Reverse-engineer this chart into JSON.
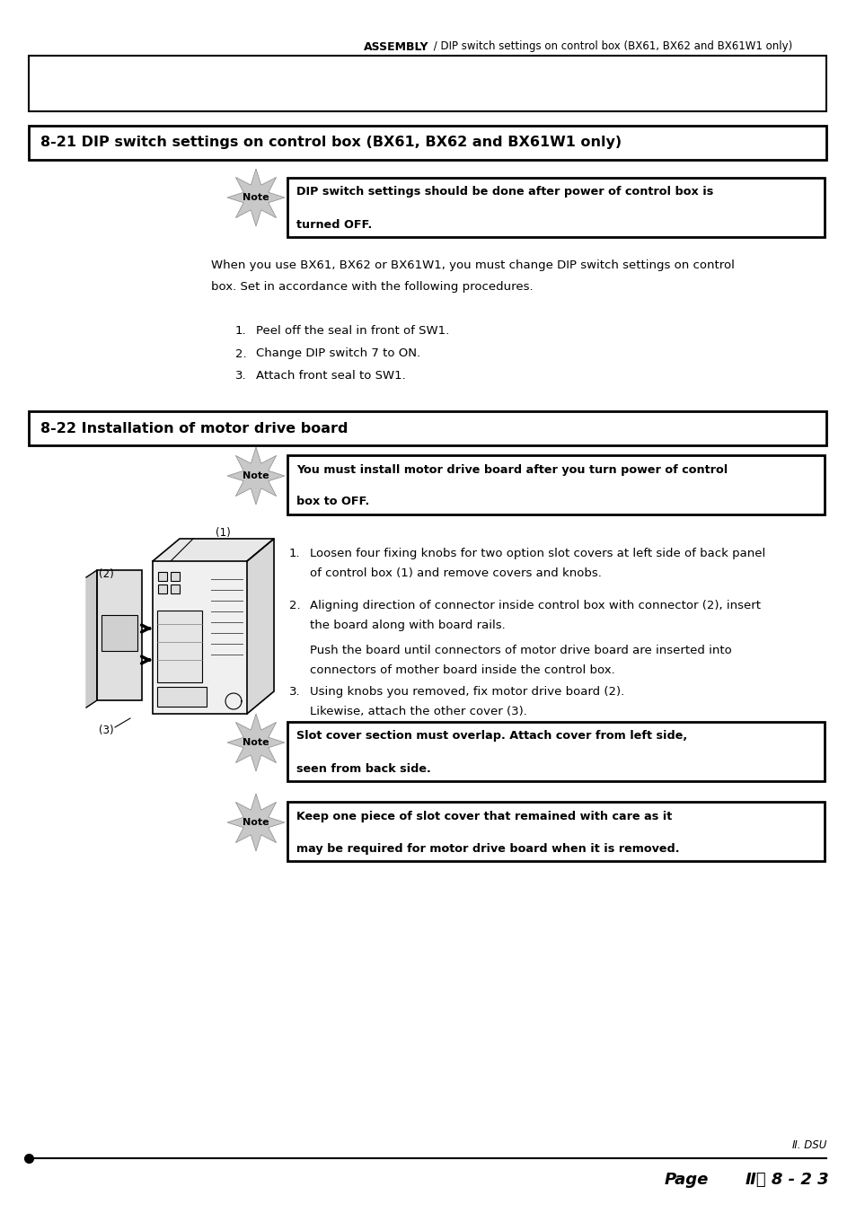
{
  "bg_color": "#ffffff",
  "header_assembly": "ASSEMBLY",
  "header_sub": " / DIP switch settings on control box (BX61, BX62 and BX61W1 only)",
  "section1_title": "8-21 DIP switch settings on control box (BX61, BX62 and BX61W1 only)",
  "note1_text1": "DIP switch settings should be done after power of control box is",
  "note1_text2": "turned OFF.",
  "body1_line1": "When you use BX61, BX62 or BX61W1, you must change DIP switch settings on control",
  "body1_line2": "box. Set in accordance with the following procedures.",
  "list1": [
    "Peel off the seal in front of SW1.",
    "Change DIP switch 7 to ON.",
    "Attach front seal to SW1."
  ],
  "section2_title": "8-22 Installation of motor drive board",
  "note2_text1": "You must install motor drive board after you turn power of control",
  "note2_text2": "box to OFF.",
  "step2_1a": "Loosen four fixing knobs for two option slot covers at left side of back panel",
  "step2_1b": "of control box (1) and remove covers and knobs.",
  "step2_2a": "Aligning direction of connector inside control box with connector (2), insert",
  "step2_2b": "the board along with board rails.",
  "step2_2c": "Push the board until connectors of motor drive board are inserted into",
  "step2_2d": "connectors of mother board inside the control box.",
  "step2_3a": "Using knobs you removed, fix motor drive board (2).",
  "step2_3b": "Likewise, attach the other cover (3).",
  "note3_text1": "Slot cover section must overlap. Attach cover from left side,",
  "note3_text2": "seen from back side.",
  "note4_text1": "Keep one piece of slot cover that remained with care as it",
  "note4_text2": "may be required for motor drive board when it is removed.",
  "footer_dsu": "Ⅱ. DSU",
  "footer_page": "Page",
  "footer_num": "Ⅱ． 8 - 2 3"
}
